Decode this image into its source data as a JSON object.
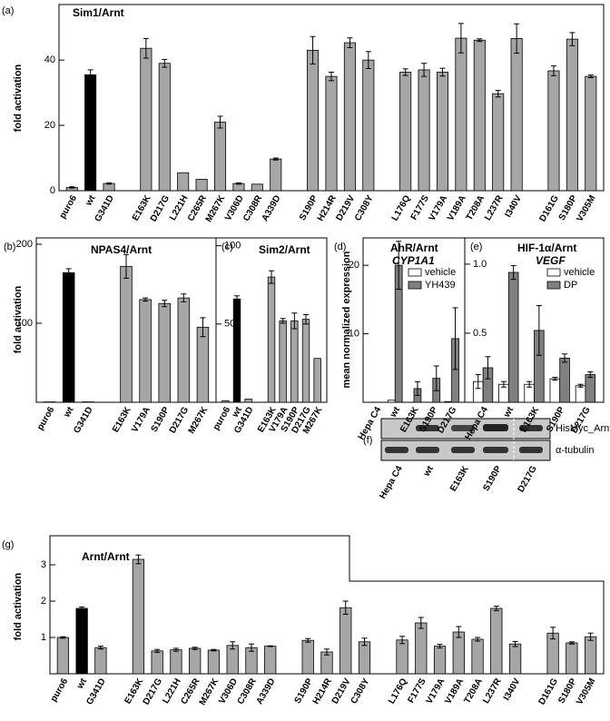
{
  "chart_data": [
    {
      "type": "bar",
      "panel": "(a)",
      "title": "Sim1/Arnt",
      "ylabel": "fold activation",
      "categories": [
        "puro6",
        "wt",
        "G341D",
        null,
        "E163K",
        "D217G",
        "L221H",
        "C265R",
        "M267K",
        "V306D",
        "C308R",
        "A339D",
        null,
        "S190P",
        "H214R",
        "D219V",
        "C308Y",
        null,
        "L176Q",
        "F177S",
        "V179A",
        "V189A",
        "T208A",
        "L237R",
        "I340V",
        null,
        "D161G",
        "S180P",
        "V305M"
      ],
      "values": [
        1.0,
        35.5,
        2.2,
        null,
        43.6,
        39.0,
        5.5,
        3.5,
        21.0,
        2.2,
        2.0,
        9.7,
        null,
        43.0,
        35.0,
        45.3,
        40.0,
        null,
        36.3,
        37.0,
        36.3,
        46.7,
        46.1,
        29.7,
        46.6,
        null,
        36.7,
        46.4,
        35.0
      ],
      "errors": [
        0.2,
        1.5,
        0.2,
        null,
        3.0,
        1.2,
        null,
        null,
        1.8,
        0.2,
        null,
        0.3,
        null,
        4.2,
        1.3,
        1.5,
        2.6,
        null,
        1.0,
        2.0,
        1.2,
        4.5,
        0.4,
        1.0,
        4.5,
        null,
        1.5,
        2.0,
        0.4
      ],
      "colors": [
        "#a6a6a6",
        "#000000",
        "#a6a6a6",
        null,
        "#a6a6a6",
        "#a6a6a6",
        "#a6a6a6",
        "#a6a6a6",
        "#a6a6a6",
        "#a6a6a6",
        "#a6a6a6",
        "#a6a6a6",
        null,
        "#a6a6a6",
        "#a6a6a6",
        "#a6a6a6",
        "#a6a6a6",
        null,
        "#a6a6a6",
        "#a6a6a6",
        "#a6a6a6",
        "#a6a6a6",
        "#a6a6a6",
        "#a6a6a6",
        "#a6a6a6",
        null,
        "#a6a6a6",
        "#a6a6a6",
        "#a6a6a6"
      ],
      "ylim": [
        0,
        57
      ],
      "yticks": [
        0,
        20,
        40
      ]
    },
    {
      "type": "bar",
      "panel": "(b)",
      "title": "NPAS4/Arnt",
      "ylabel": "fold activation",
      "categories": [
        "puro6",
        "wt",
        "G341D",
        null,
        "E163K",
        "V179A",
        "S190P",
        "D217G",
        "M267K"
      ],
      "values": [
        0.5,
        164,
        0.5,
        null,
        172,
        130,
        125,
        132,
        95
      ],
      "errors": [
        null,
        5,
        null,
        null,
        15,
        2,
        4,
        5,
        12
      ],
      "colors": [
        "#a6a6a6",
        "#000000",
        "#a6a6a6",
        null,
        "#a6a6a6",
        "#a6a6a6",
        "#a6a6a6",
        "#a6a6a6",
        "#a6a6a6"
      ],
      "ylim": [
        0,
        208
      ],
      "yticks": [
        100,
        200
      ]
    },
    {
      "type": "bar",
      "panel": "(c)",
      "title": "Sim2/Arnt",
      "categories": [
        "puro6",
        "wt",
        "G341D",
        null,
        "E163K",
        "V179A",
        "S190P",
        "D217G",
        "M267K"
      ],
      "values": [
        1,
        66,
        2,
        null,
        80,
        52,
        52,
        53,
        28
      ],
      "errors": [
        null,
        2,
        null,
        null,
        4,
        1.5,
        5,
        3,
        null
      ],
      "colors": [
        "#a6a6a6",
        "#000000",
        "#a6a6a6",
        null,
        "#a6a6a6",
        "#a6a6a6",
        "#a6a6a6",
        "#a6a6a6",
        "#a6a6a6"
      ],
      "ylim": [
        0,
        105
      ],
      "yticks": [
        50,
        100
      ]
    },
    {
      "type": "bar",
      "panel": "(d)",
      "title": "AhR/Arnt",
      "subtitle": "CYP1A1",
      "ylabel": "mean normalized expression",
      "categories": [
        "Hepa C4",
        "wt",
        "E163K",
        "S190P",
        "D217G"
      ],
      "series": [
        {
          "name": "vehicle",
          "color": "#ffffff",
          "values": [
            0,
            0.3,
            0,
            0,
            0.1
          ],
          "errors": [
            null,
            null,
            null,
            null,
            null
          ]
        },
        {
          "name": "YH439",
          "color": "#808080",
          "values": [
            0,
            20,
            2,
            3.5,
            9.3
          ],
          "errors": [
            null,
            3.5,
            1,
            1.8,
            4.5
          ]
        }
      ],
      "ylim": [
        0,
        24
      ],
      "yticks": [
        10,
        20
      ],
      "legend": "upper right"
    },
    {
      "type": "bar",
      "panel": "(e)",
      "title": "HIF-1α/Arnt",
      "subtitle": "VEGF",
      "categories": [
        "Hepa C4",
        "wt",
        "E163K",
        "S190P",
        "D217G"
      ],
      "series": [
        {
          "name": "vehicle",
          "color": "#ffffff",
          "values": [
            0.15,
            0.13,
            0.13,
            0.17,
            0.12
          ],
          "errors": [
            0.05,
            0.02,
            0.02,
            0.01,
            0.01
          ]
        },
        {
          "name": "DP",
          "color": "#808080",
          "values": [
            0.25,
            0.94,
            0.52,
            0.32,
            0.2
          ],
          "errors": [
            0.08,
            0.05,
            0.18,
            0.03,
            0.02
          ]
        }
      ],
      "ylim": [
        0,
        1.19
      ],
      "yticks": [
        0.5,
        {
          "value": 1,
          "label": "1.0"
        }
      ],
      "legend": "upper right"
    },
    {
      "type": "bar",
      "panel": "(g)",
      "title": "Arnt/Arnt",
      "ylabel": "fold activation",
      "categories": [
        "puro6",
        "wt",
        "G341D",
        null,
        "E163K",
        "D217G",
        "L221H",
        "C265R",
        "M267K",
        "V306D",
        "C308R",
        "A339D",
        null,
        "S190P",
        "H214R",
        "D219V",
        "C308Y",
        null,
        "L176Q",
        "F177S",
        "V179A",
        "V189A",
        "T208A",
        "L237R",
        "I340V",
        null,
        "D161G",
        "S180P",
        "V305M"
      ],
      "values": [
        1.0,
        1.8,
        0.72,
        null,
        3.15,
        0.63,
        0.66,
        0.7,
        0.65,
        0.78,
        0.72,
        0.76,
        null,
        0.92,
        0.6,
        1.82,
        0.88,
        null,
        0.93,
        1.4,
        0.76,
        1.15,
        0.95,
        1.8,
        0.82,
        null,
        1.12,
        0.85,
        1.02
      ],
      "errors": [
        0.02,
        0.04,
        0.04,
        null,
        0.12,
        0.04,
        0.04,
        0.03,
        0.02,
        0.1,
        0.1,
        0.01,
        null,
        0.05,
        0.08,
        0.18,
        0.1,
        null,
        0.1,
        0.15,
        0.05,
        0.15,
        0.05,
        0.06,
        0.07,
        null,
        0.16,
        0.03,
        0.1
      ],
      "colors": [
        "#a6a6a6",
        "#000000",
        "#a6a6a6",
        null,
        "#a6a6a6",
        "#a6a6a6",
        "#a6a6a6",
        "#a6a6a6",
        "#a6a6a6",
        "#a6a6a6",
        "#a6a6a6",
        "#a6a6a6",
        null,
        "#a6a6a6",
        "#a6a6a6",
        "#a6a6a6",
        "#a6a6a6",
        null,
        "#a6a6a6",
        "#a6a6a6",
        "#a6a6a6",
        "#a6a6a6",
        "#a6a6a6",
        "#a6a6a6",
        "#a6a6a6",
        null,
        "#a6a6a6",
        "#a6a6a6",
        "#a6a6a6"
      ],
      "ylim": [
        0,
        3.8
      ],
      "yticks": [
        1,
        2,
        3
      ]
    }
  ],
  "blot": {
    "panel": "(f)",
    "rows": [
      "HisMyc_Arnt",
      "α-tubulin"
    ],
    "lanes": [
      "Hepa C4",
      "wt",
      "E163K",
      "S190P",
      "D217G"
    ]
  }
}
